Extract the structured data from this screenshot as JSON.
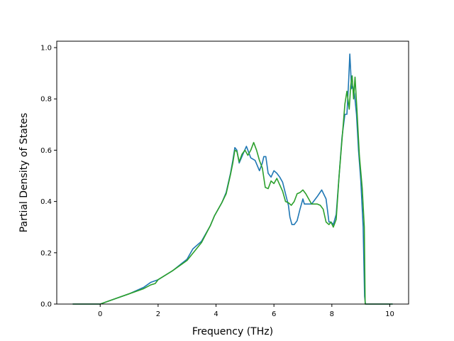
{
  "chart_data": {
    "type": "line",
    "title": "",
    "xlabel": "Frequency (THz)",
    "ylabel": "Partial Density of States",
    "xlim": [
      -1.5,
      10.65
    ],
    "ylim": [
      0.0,
      1.025
    ],
    "xticks": [
      0,
      2,
      4,
      6,
      8,
      10
    ],
    "xtick_labels": [
      "0",
      "2",
      "4",
      "6",
      "8",
      "10"
    ],
    "yticks": [
      0.0,
      0.2,
      0.4,
      0.6,
      0.8,
      1.0
    ],
    "ytick_labels": [
      "0.0",
      "0.2",
      "0.4",
      "0.6",
      "0.8",
      "1.0"
    ],
    "grid": false,
    "legend": "none",
    "series": [
      {
        "color": "#1f77b4",
        "x": [
          -0.95,
          0.0,
          0.5,
          1.0,
          1.5,
          1.75,
          2.0,
          2.5,
          3.0,
          3.2,
          3.5,
          3.8,
          3.95,
          4.2,
          4.35,
          4.5,
          4.58,
          4.65,
          4.72,
          4.8,
          4.95,
          5.05,
          5.2,
          5.35,
          5.5,
          5.6,
          5.65,
          5.72,
          5.8,
          5.9,
          6.0,
          6.1,
          6.2,
          6.3,
          6.4,
          6.5,
          6.55,
          6.62,
          6.7,
          6.8,
          6.9,
          7.0,
          7.05,
          7.15,
          7.3,
          7.5,
          7.65,
          7.8,
          7.9,
          7.97,
          8.05,
          8.15,
          8.25,
          8.35,
          8.45,
          8.52,
          8.58,
          8.62,
          8.65,
          8.68,
          8.72,
          8.78,
          8.85,
          8.92,
          9.0,
          9.08,
          9.13,
          9.16,
          9.2,
          9.4,
          10.1
        ],
        "y": [
          0.0,
          0.0,
          0.02,
          0.04,
          0.065,
          0.085,
          0.095,
          0.13,
          0.175,
          0.215,
          0.245,
          0.305,
          0.345,
          0.395,
          0.435,
          0.51,
          0.56,
          0.61,
          0.6,
          0.55,
          0.59,
          0.615,
          0.57,
          0.56,
          0.52,
          0.55,
          0.575,
          0.575,
          0.51,
          0.495,
          0.52,
          0.51,
          0.495,
          0.475,
          0.43,
          0.385,
          0.34,
          0.31,
          0.31,
          0.325,
          0.37,
          0.41,
          0.39,
          0.39,
          0.39,
          0.42,
          0.445,
          0.41,
          0.32,
          0.32,
          0.31,
          0.35,
          0.5,
          0.65,
          0.74,
          0.74,
          0.87,
          0.975,
          0.91,
          0.84,
          0.85,
          0.82,
          0.74,
          0.6,
          0.48,
          0.3,
          0.03,
          0.0,
          0.0,
          0.0,
          0.0
        ]
      },
      {
        "color": "#2ca02c",
        "x": [
          -0.95,
          0.0,
          0.5,
          1.0,
          1.5,
          1.75,
          1.9,
          2.0,
          2.5,
          3.0,
          3.5,
          3.8,
          3.95,
          4.2,
          4.35,
          4.5,
          4.58,
          4.65,
          4.72,
          4.8,
          4.9,
          5.0,
          5.1,
          5.2,
          5.3,
          5.4,
          5.5,
          5.6,
          5.7,
          5.8,
          5.9,
          6.0,
          6.1,
          6.2,
          6.3,
          6.4,
          6.5,
          6.6,
          6.7,
          6.8,
          6.9,
          7.0,
          7.1,
          7.2,
          7.3,
          7.5,
          7.6,
          7.7,
          7.8,
          7.9,
          7.97,
          8.05,
          8.15,
          8.25,
          8.35,
          8.45,
          8.52,
          8.6,
          8.65,
          8.7,
          8.75,
          8.8,
          8.87,
          8.95,
          9.05,
          9.12,
          9.15,
          9.2,
          9.4,
          10.1
        ],
        "y": [
          0.0,
          0.0,
          0.02,
          0.04,
          0.06,
          0.075,
          0.08,
          0.095,
          0.13,
          0.17,
          0.24,
          0.305,
          0.345,
          0.395,
          0.43,
          0.505,
          0.55,
          0.6,
          0.595,
          0.555,
          0.585,
          0.6,
          0.58,
          0.6,
          0.63,
          0.6,
          0.56,
          0.53,
          0.455,
          0.45,
          0.48,
          0.47,
          0.49,
          0.465,
          0.44,
          0.4,
          0.395,
          0.385,
          0.4,
          0.43,
          0.435,
          0.445,
          0.43,
          0.41,
          0.39,
          0.39,
          0.385,
          0.37,
          0.32,
          0.31,
          0.32,
          0.3,
          0.33,
          0.5,
          0.64,
          0.78,
          0.83,
          0.76,
          0.85,
          0.89,
          0.8,
          0.885,
          0.75,
          0.58,
          0.45,
          0.3,
          0.0,
          0.0,
          0.0,
          0.0
        ]
      }
    ]
  }
}
